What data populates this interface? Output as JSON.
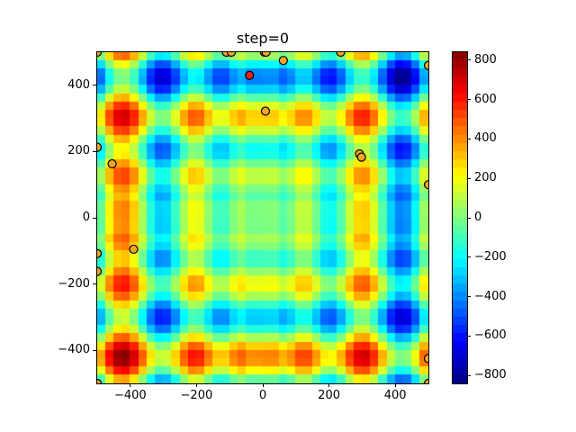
{
  "chart_data": {
    "type": "heatmap",
    "title": "step=0",
    "xlabel": "",
    "ylabel": "",
    "xlim": [
      -500,
      500
    ],
    "ylim": [
      -500,
      500
    ],
    "x_ticks": [
      -400,
      -200,
      0,
      200,
      400
    ],
    "y_ticks": [
      -400,
      -200,
      0,
      200,
      400
    ],
    "x_tick_labels": [
      "−400",
      "−200",
      "0",
      "200",
      "400"
    ],
    "y_tick_labels": [
      "−400",
      "−200",
      "0",
      "200",
      "400"
    ],
    "colormap": "jet",
    "colorbar": {
      "range": [
        -840,
        840
      ],
      "ticks": [
        -800,
        -600,
        -400,
        -200,
        0,
        200,
        400,
        600,
        800
      ],
      "tick_labels": [
        "−800",
        "−600",
        "−400",
        "−200",
        "0",
        "200",
        "400",
        "600",
        "800"
      ]
    },
    "function": "schwefel-like surface, grid 40x40",
    "scatter_points": [
      {
        "x": -500,
        "y": 500,
        "color": "#f5a623"
      },
      {
        "x": -110,
        "y": 500,
        "color": "#f5a623"
      },
      {
        "x": -95,
        "y": 500,
        "color": "#f5a623"
      },
      {
        "x": -40,
        "y": 430,
        "color": "#e8221c"
      },
      {
        "x": 5,
        "y": 500,
        "color": "#f5a623"
      },
      {
        "x": 10,
        "y": 500,
        "color": "#f5a623"
      },
      {
        "x": 62,
        "y": 475,
        "color": "#f5a623"
      },
      {
        "x": 235,
        "y": 500,
        "color": "#f5a623"
      },
      {
        "x": 500,
        "y": 460,
        "color": "#f5a623"
      },
      {
        "x": 8,
        "y": 322,
        "color": "#f5a623"
      },
      {
        "x": -500,
        "y": 213,
        "color": "#f5a623"
      },
      {
        "x": -455,
        "y": 163,
        "color": "#f5a623"
      },
      {
        "x": 292,
        "y": 193,
        "color": "#f5a623"
      },
      {
        "x": 298,
        "y": 183,
        "color": "#f5a623"
      },
      {
        "x": 500,
        "y": 100,
        "color": "#f5a623"
      },
      {
        "x": -500,
        "y": -108,
        "color": "#f5a623"
      },
      {
        "x": -390,
        "y": -95,
        "color": "#f5a623"
      },
      {
        "x": -500,
        "y": -162,
        "color": "#f5a623"
      },
      {
        "x": 500,
        "y": -425,
        "color": "#f5a623"
      },
      {
        "x": -500,
        "y": -500,
        "color": "#f5a623"
      },
      {
        "x": 500,
        "y": -500,
        "color": "#f5a623"
      }
    ]
  }
}
